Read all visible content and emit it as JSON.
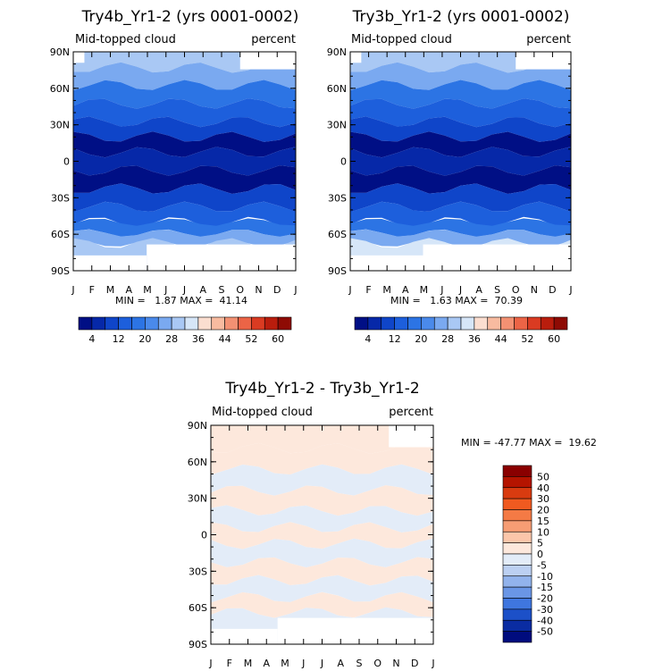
{
  "chart_data": [
    {
      "type": "heatmap",
      "title": "Try4b_Yr1-2 (yrs 0001-0002)",
      "subtitle_left": "Mid-topped cloud",
      "subtitle_right": "percent",
      "months": [
        "J",
        "F",
        "M",
        "A",
        "M",
        "J",
        "J",
        "A",
        "S",
        "O",
        "N",
        "D",
        "J"
      ],
      "lat_labels": [
        "90N",
        "60N",
        "30N",
        "0",
        "30S",
        "60S",
        "90S"
      ],
      "stats": "MIN =   1.87 MAX =  41.14",
      "colorbar_labels": [
        "4",
        "12",
        "20",
        "28",
        "36",
        "44",
        "52",
        "60"
      ],
      "levels": [
        0,
        4,
        8,
        12,
        16,
        20,
        24,
        28,
        32,
        36,
        40,
        44,
        48,
        52,
        56,
        60,
        64
      ],
      "bands": [
        {
          "lat": 84,
          "value": 30
        },
        {
          "lat": 70,
          "value": 24
        },
        {
          "lat": 55,
          "value": 18
        },
        {
          "lat": 40,
          "value": 13
        },
        {
          "lat": 25,
          "value": 9
        },
        {
          "lat": 15,
          "value": 3
        },
        {
          "lat": 0,
          "value": 7
        },
        {
          "lat": -15,
          "value": 3
        },
        {
          "lat": -30,
          "value": 9
        },
        {
          "lat": -45,
          "value": 14
        },
        {
          "lat": -55,
          "value": 18
        },
        {
          "lat": -63,
          "value": 26
        },
        {
          "lat": -72,
          "value": 30
        }
      ]
    },
    {
      "type": "heatmap",
      "title": "Try3b_Yr1-2 (yrs 0001-0002)",
      "subtitle_left": "Mid-topped cloud",
      "subtitle_right": "percent",
      "months": [
        "J",
        "F",
        "M",
        "A",
        "M",
        "J",
        "J",
        "A",
        "S",
        "O",
        "N",
        "D",
        "J"
      ],
      "lat_labels": [
        "90N",
        "60N",
        "30N",
        "0",
        "30S",
        "60S",
        "90S"
      ],
      "stats": "MIN =   1.63 MAX =  70.39",
      "colorbar_labels": [
        "4",
        "12",
        "20",
        "28",
        "36",
        "44",
        "52",
        "60"
      ],
      "levels": [
        0,
        4,
        8,
        12,
        16,
        20,
        24,
        28,
        32,
        36,
        40,
        44,
        48,
        52,
        56,
        60,
        64
      ],
      "bands": [
        {
          "lat": 84,
          "value": 31
        },
        {
          "lat": 70,
          "value": 25
        },
        {
          "lat": 55,
          "value": 18
        },
        {
          "lat": 40,
          "value": 13
        },
        {
          "lat": 25,
          "value": 9
        },
        {
          "lat": 15,
          "value": 3
        },
        {
          "lat": 0,
          "value": 7
        },
        {
          "lat": -15,
          "value": 3
        },
        {
          "lat": -30,
          "value": 9
        },
        {
          "lat": -45,
          "value": 14
        },
        {
          "lat": -55,
          "value": 18
        },
        {
          "lat": -63,
          "value": 27
        },
        {
          "lat": -72,
          "value": 33
        }
      ]
    },
    {
      "type": "heatmap",
      "title": "Try4b_Yr1-2 - Try3b_Yr1-2",
      "subtitle_left": "Mid-topped cloud",
      "subtitle_right": "percent",
      "months": [
        "J",
        "F",
        "M",
        "A",
        "M",
        "J",
        "J",
        "A",
        "S",
        "O",
        "N",
        "D",
        "J"
      ],
      "lat_labels": [
        "90N",
        "60N",
        "30N",
        "0",
        "30S",
        "60S",
        "90S"
      ],
      "stats": "MIN = -47.77 MAX =  19.62",
      "colorbar_labels": [
        "50",
        "40",
        "30",
        "20",
        "15",
        "10",
        "5",
        "0",
        "-5",
        "-10",
        "-15",
        "-20",
        "-30",
        "-40",
        "-50"
      ],
      "bands": [
        {
          "lat": 80,
          "value": 3
        },
        {
          "lat": 62,
          "value": 2
        },
        {
          "lat": 45,
          "value": -2
        },
        {
          "lat": 28,
          "value": 2
        },
        {
          "lat": 12,
          "value": -2
        },
        {
          "lat": 0,
          "value": 2
        },
        {
          "lat": -15,
          "value": -2
        },
        {
          "lat": -30,
          "value": 2
        },
        {
          "lat": -45,
          "value": -2
        },
        {
          "lat": -58,
          "value": 2
        },
        {
          "lat": -70,
          "value": -3
        }
      ]
    }
  ]
}
